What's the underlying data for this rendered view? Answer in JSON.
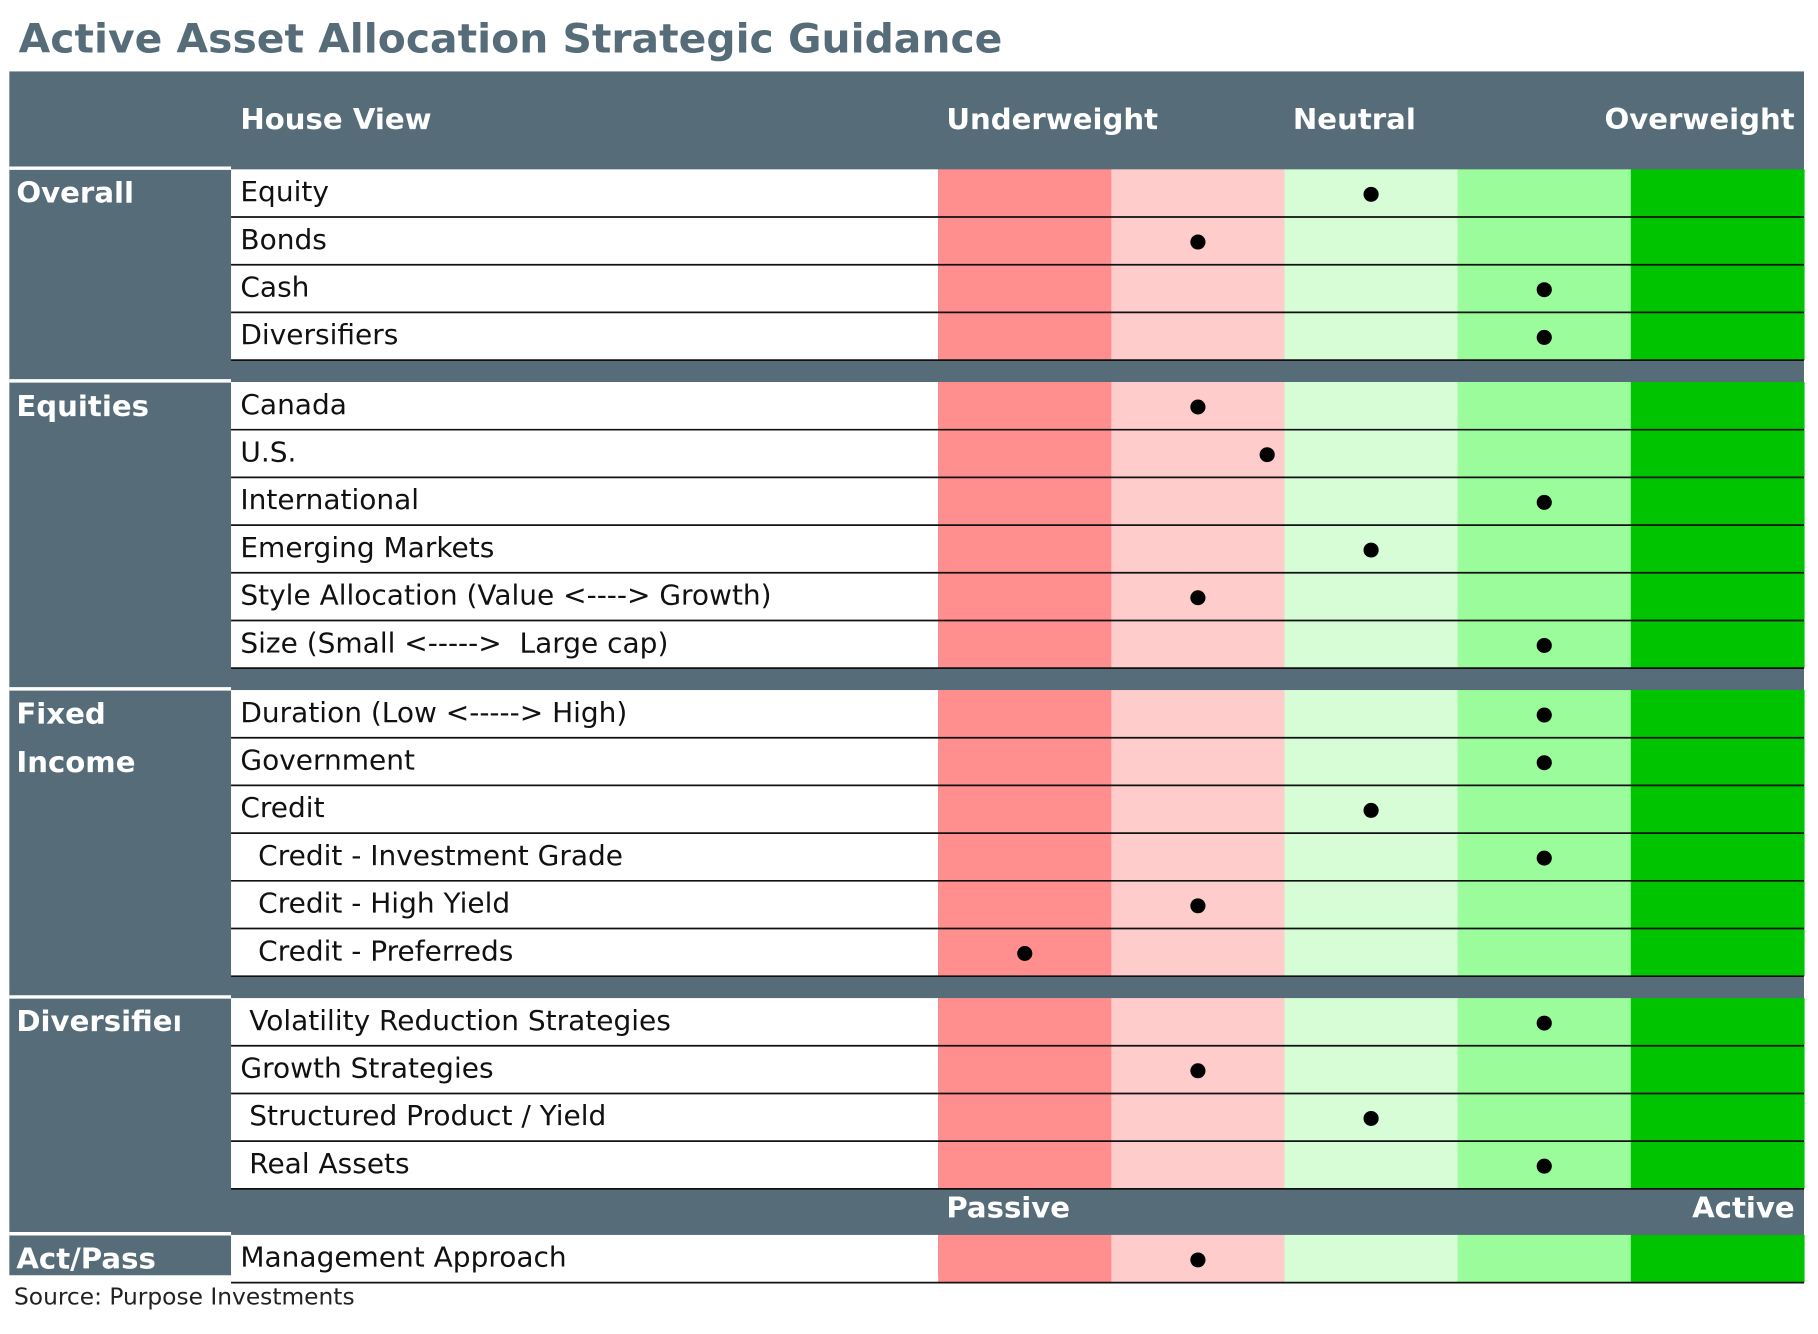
{
  "title": "Active Asset Allocation Strategic Guidance",
  "header": {
    "house_view": "House View",
    "underweight": "Underweight",
    "neutral": "Neutral",
    "overweight": "Overweight"
  },
  "column_colors": [
    "#ff8f8f",
    "#ffcccc",
    "#d7fdd7",
    "#9afc9a",
    "#00c400"
  ],
  "groups": [
    {
      "name": "Overall",
      "rows": [
        {
          "label": "Equity",
          "position": 3
        },
        {
          "label": "Bonds",
          "position": 2
        },
        {
          "label": "Cash",
          "position": 4
        },
        {
          "label": "Diversifiers",
          "position": 4
        }
      ]
    },
    {
      "name": "Equities",
      "rows": [
        {
          "label": "Canada",
          "position": 2
        },
        {
          "label": "U.S.",
          "position": 2.4
        },
        {
          "label": "International",
          "position": 4
        },
        {
          "label": "Emerging Markets",
          "position": 3
        },
        {
          "label": "Style Allocation (Value <----> Growth)",
          "position": 2
        },
        {
          "label": "Size (Small <----->  Large cap)",
          "position": 4
        }
      ]
    },
    {
      "name": "Fixed Income",
      "rows": [
        {
          "label": "Duration (Low <-----> High)",
          "position": 4
        },
        {
          "label": "Government",
          "position": 4
        },
        {
          "label": "Credit",
          "position": 3
        },
        {
          "label": "  Credit - Investment Grade",
          "position": 4
        },
        {
          "label": "  Credit - High Yield",
          "position": 2
        },
        {
          "label": "  Credit - Preferreds",
          "position": 1
        }
      ]
    },
    {
      "name": "Diversifiers",
      "rows": [
        {
          "label": " Volatility Reduction Strategies",
          "position": 4
        },
        {
          "label": "Growth Strategies",
          "position": 2
        },
        {
          "label": " Structured Product / Yield",
          "position": 3
        },
        {
          "label": " Real Assets",
          "position": 4
        }
      ]
    },
    {
      "name": "Act/Pass",
      "scale_labels": [
        "Passive",
        "Active"
      ],
      "rows": [
        {
          "label": "Management Approach",
          "position": 2
        }
      ]
    }
  ],
  "source": "Source: Purpose Investments"
}
